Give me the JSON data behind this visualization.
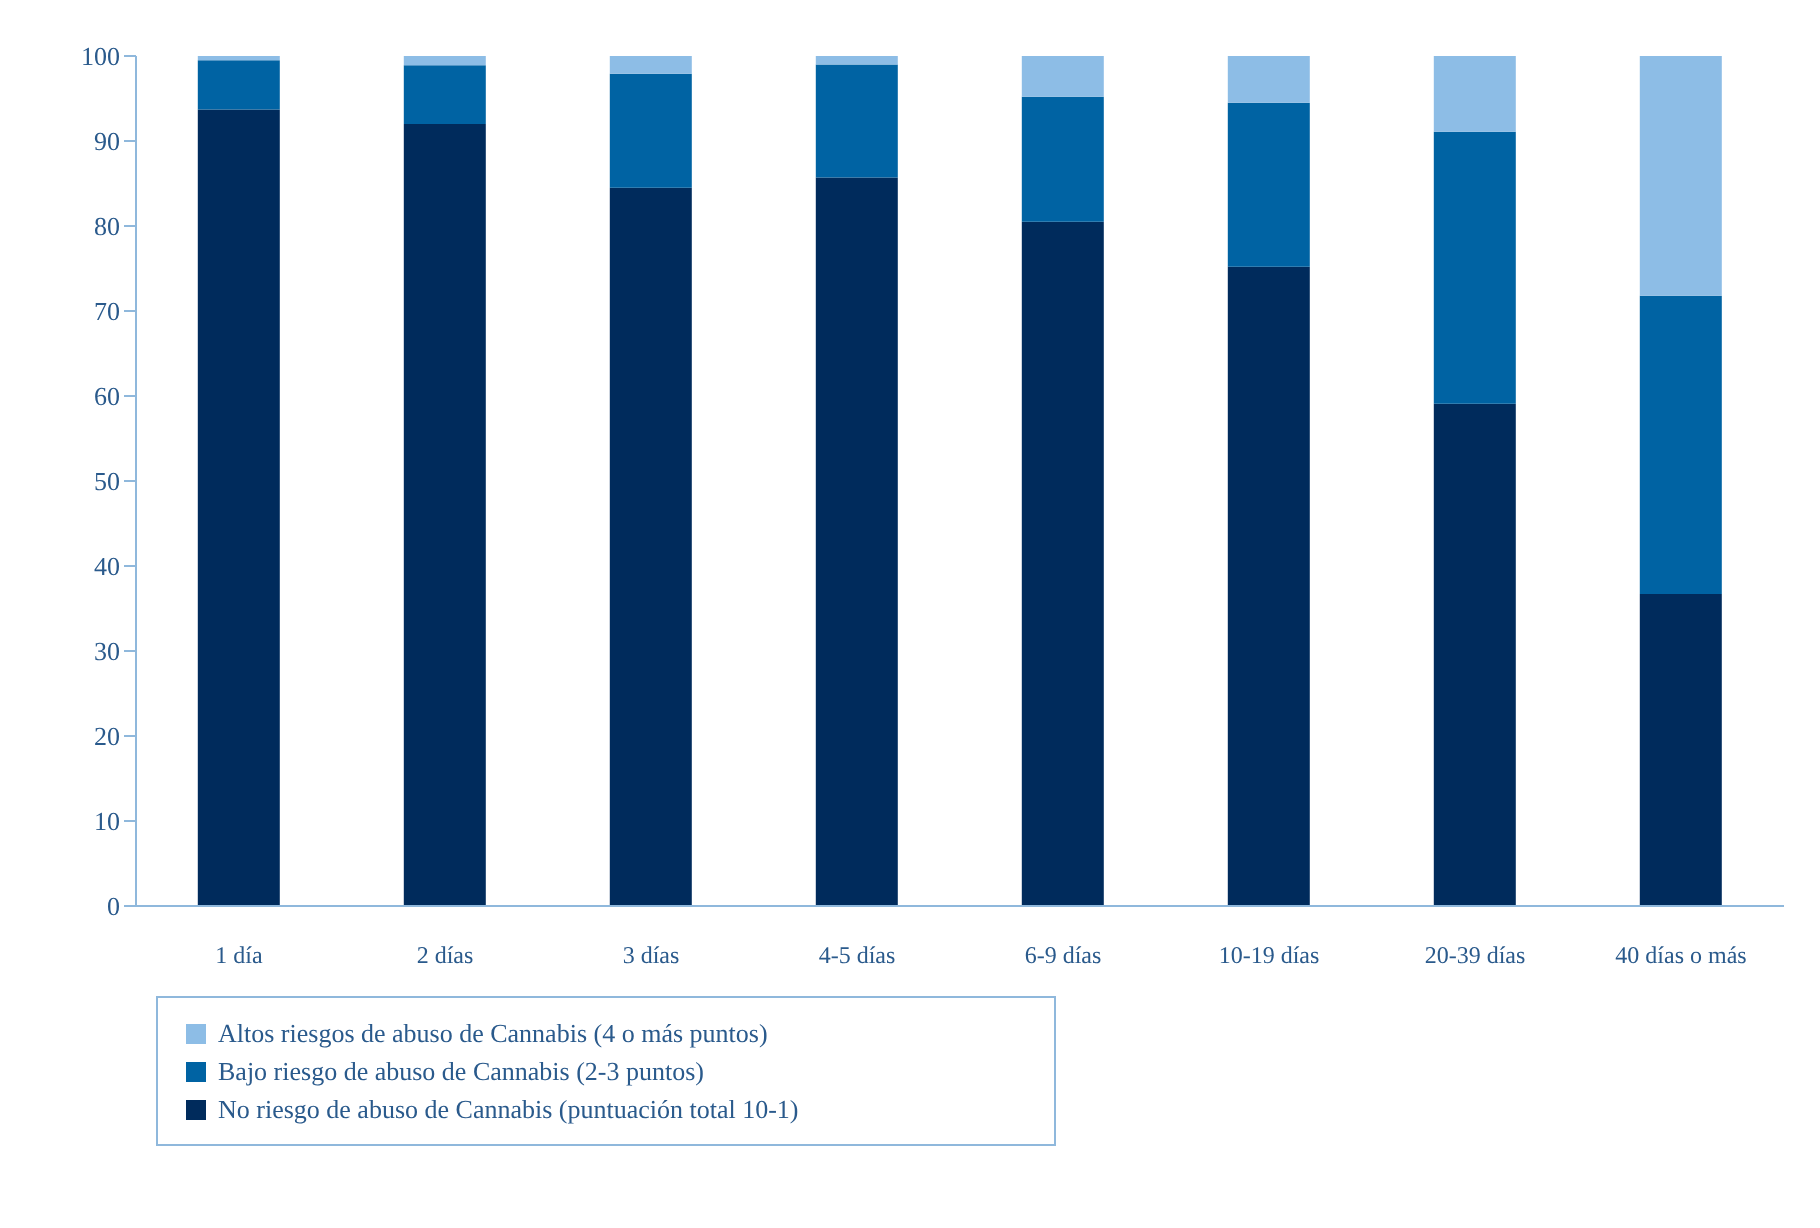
{
  "chart_data": {
    "type": "bar",
    "stacked": true,
    "categories": [
      "1 día",
      "2 días",
      "3 días",
      "4-5 días",
      "6-9 días",
      "10-19 días",
      "20-39 días",
      "40 días o más"
    ],
    "series": [
      {
        "name": "No riesgo de abuso de Cannabis (puntuación total 10-1)",
        "color": "#002b5c",
        "values": [
          93.7,
          92.0,
          84.5,
          85.7,
          80.5,
          75.2,
          59.1,
          36.7
        ]
      },
      {
        "name": "Bajo riesgo de abuso de Cannabis (2-3 puntos)",
        "color": "#0063a3",
        "values": [
          5.8,
          6.9,
          13.4,
          13.3,
          14.7,
          19.3,
          32.0,
          35.1
        ]
      },
      {
        "name": "Altos riesgos de abuso de Cannabis (4 o más puntos)",
        "color": "#8dbde6",
        "values": [
          0.5,
          1.1,
          2.1,
          1.0,
          4.8,
          5.5,
          8.9,
          28.2
        ]
      }
    ],
    "ylim": [
      0,
      100
    ],
    "yticks": [
      0,
      10,
      20,
      30,
      40,
      50,
      60,
      70,
      80,
      90,
      100
    ],
    "grid": false,
    "legend": "bottom"
  }
}
